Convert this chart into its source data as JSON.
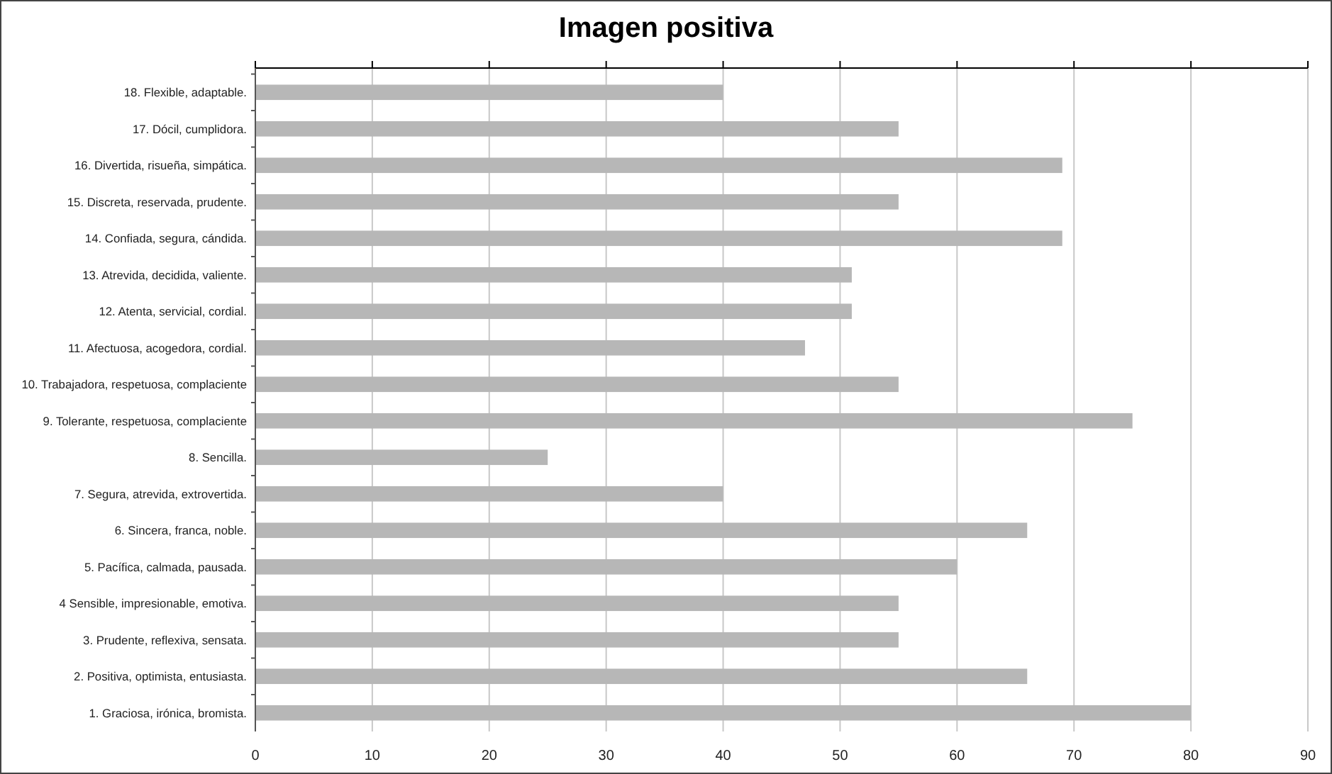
{
  "chart_data": {
    "type": "bar",
    "orientation": "horizontal",
    "title": "Imagen positiva",
    "categories": [
      "18. Flexible, adaptable.",
      "17. Dócil, cumplidora.",
      "16. Divertida, risueña, simpática.",
      "15. Discreta, reservada, prudente.",
      "14. Confiada, segura, cándida.",
      "13. Atrevida, decidida, valiente.",
      "12. Atenta, servicial, cordial.",
      "11. Afectuosa, acogedora, cordial.",
      "10. Trabajadora, respetuosa, complaciente",
      "9. Tolerante, respetuosa, complaciente",
      "8. Sencilla.",
      "7. Segura, atrevida, extrovertida.",
      "6. Sincera, franca, noble.",
      "5. Pacífica, calmada, pausada.",
      "4 Sensible, impresionable, emotiva.",
      "3. Prudente, reflexiva, sensata.",
      "2. Positiva, optimista, entusiasta.",
      "1. Graciosa, irónica, bromista."
    ],
    "values": [
      40,
      55,
      69,
      55,
      69,
      51,
      51,
      47,
      55,
      75,
      25,
      40,
      66,
      60,
      55,
      55,
      66,
      80
    ],
    "color": "#b7b7b7",
    "xlim": [
      0,
      90
    ],
    "xticks": [
      0,
      10,
      20,
      30,
      40,
      50,
      60,
      70,
      80,
      90
    ],
    "grid": "x"
  }
}
